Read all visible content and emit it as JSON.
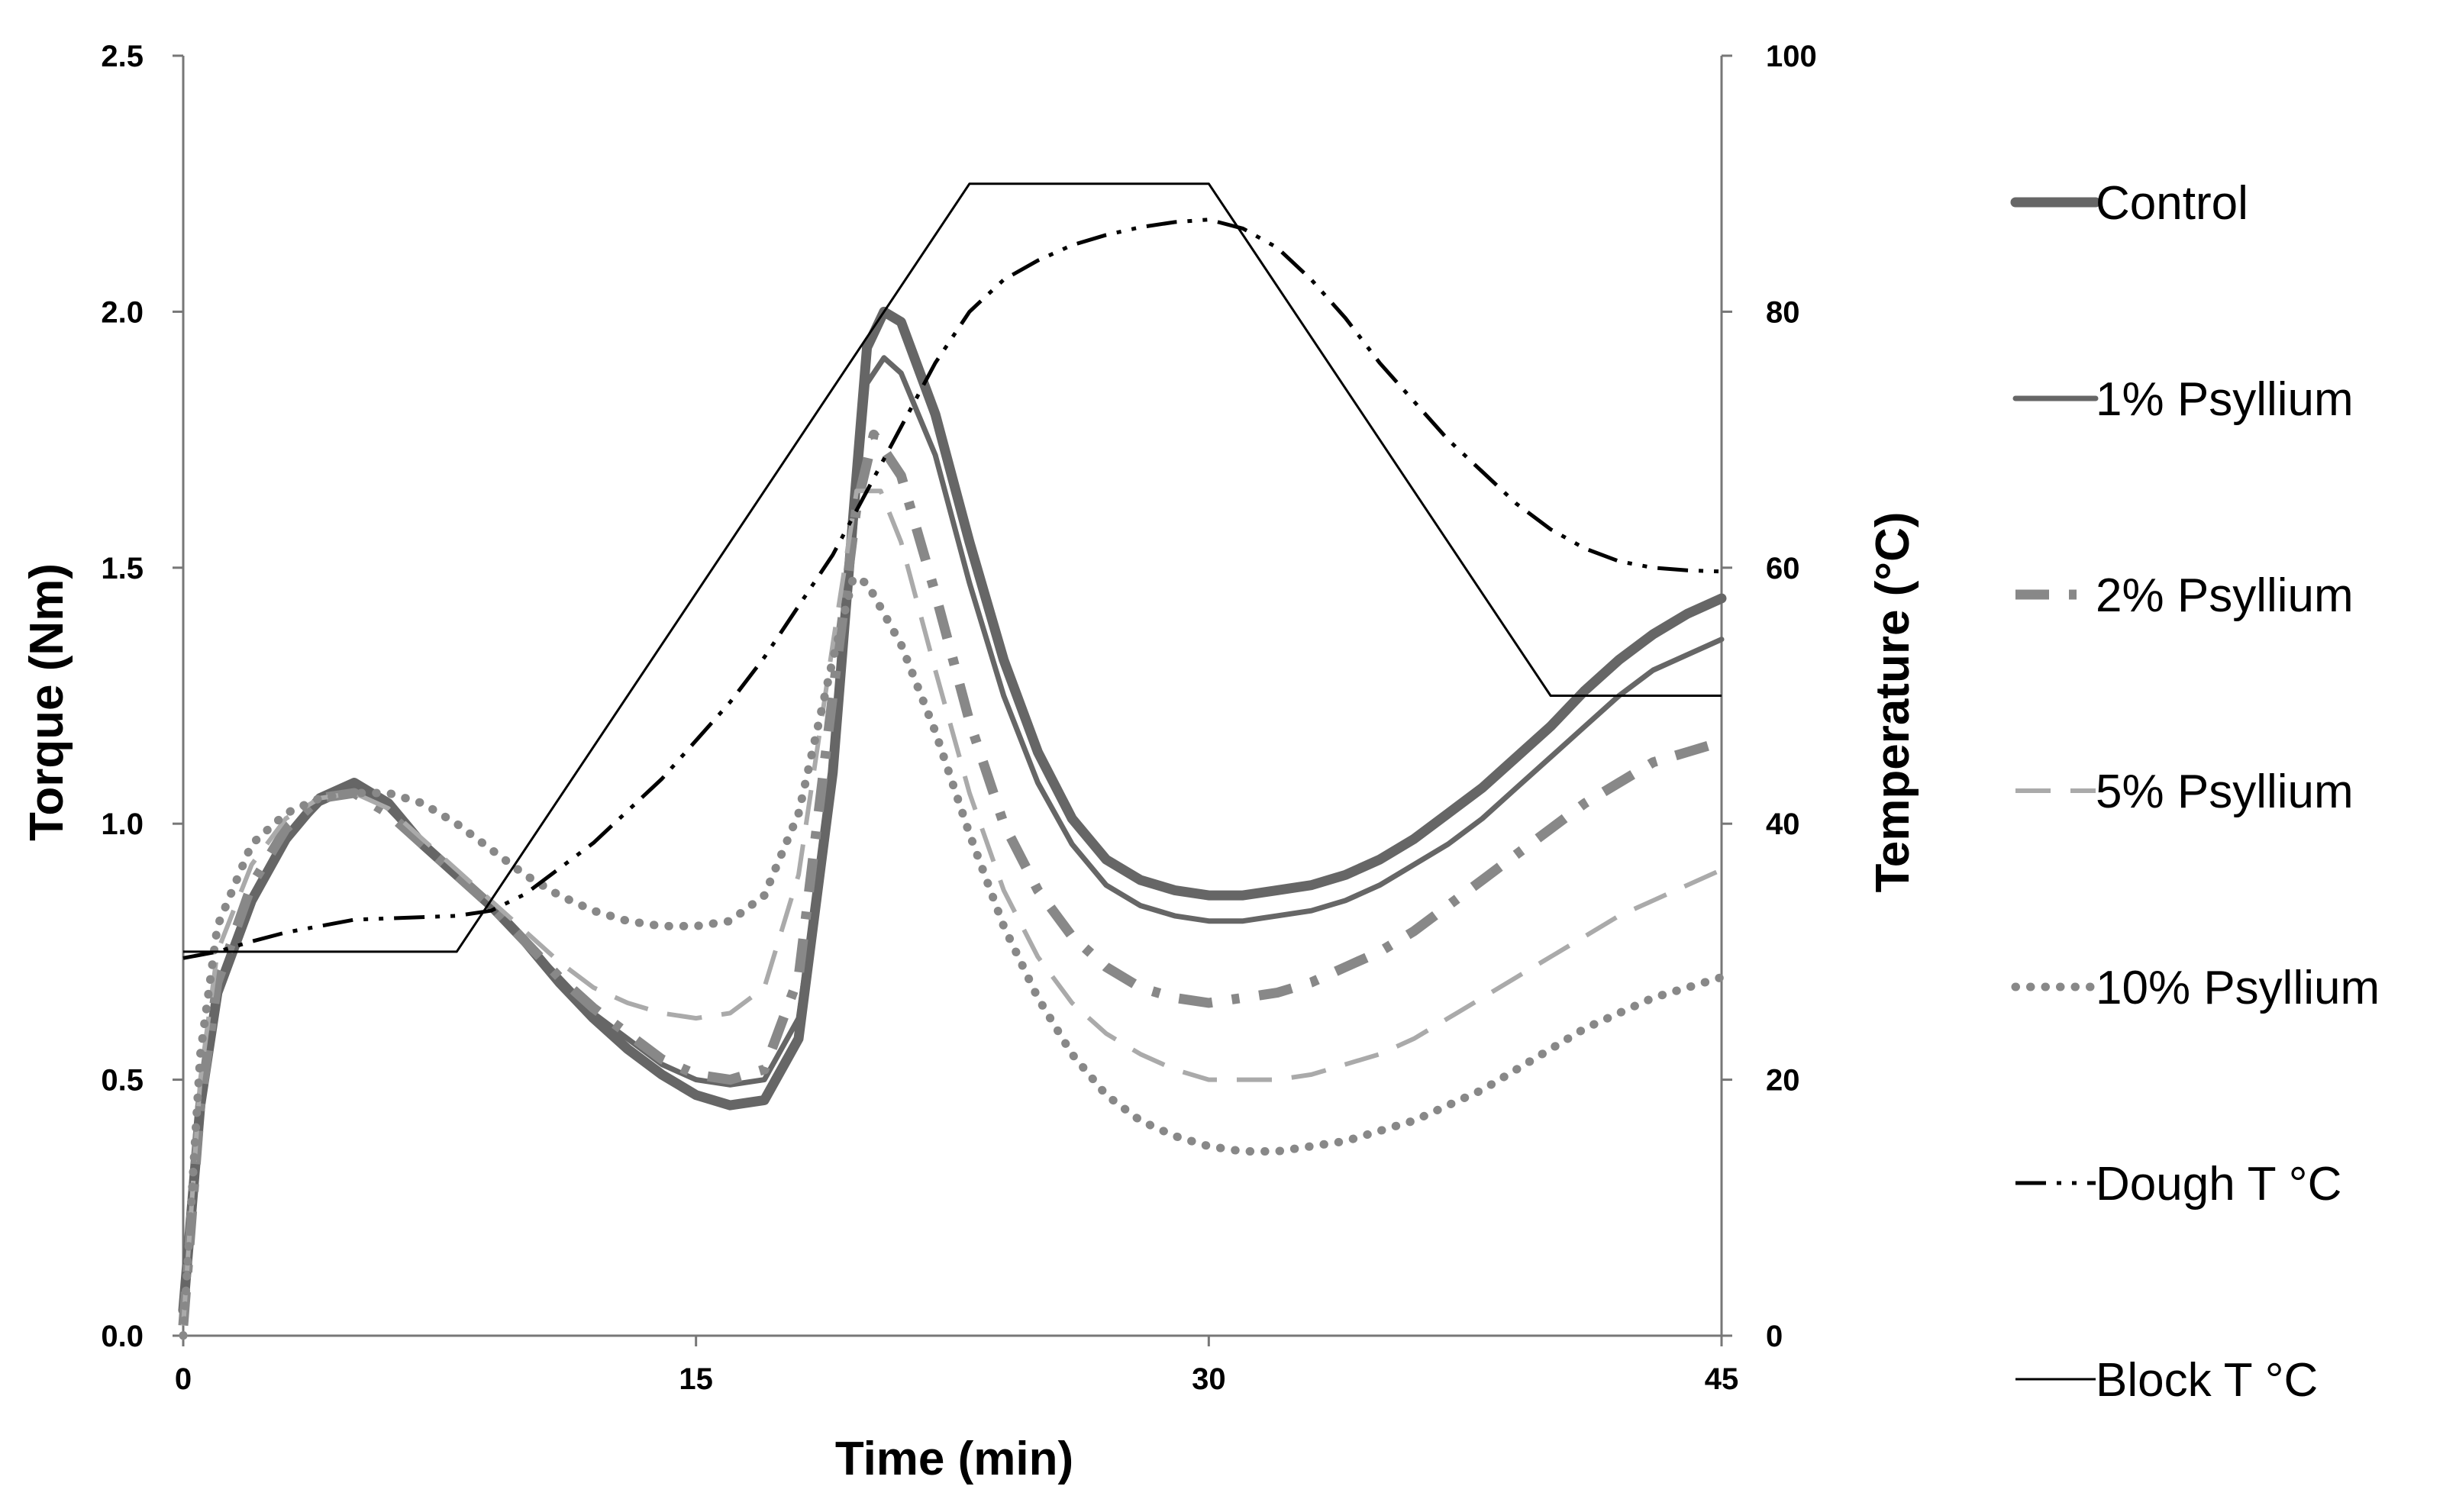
{
  "chart_data": {
    "type": "line",
    "xlabel": "Time (min)",
    "ylabel": "Torque (Nm)",
    "y2label": "Temperature (°C)",
    "xlim": [
      0,
      45
    ],
    "ylim": [
      0,
      2.5
    ],
    "y2lim": [
      0,
      100
    ],
    "xticks": [
      0,
      15,
      30,
      45
    ],
    "yticks": [
      0.0,
      0.5,
      1.0,
      1.5,
      2.0,
      2.5
    ],
    "y2ticks": [
      0,
      20,
      40,
      60,
      80,
      100
    ],
    "xtick_labels": [
      "0",
      "15",
      "30",
      "45"
    ],
    "ytick_labels": [
      "0.0",
      "0.5",
      "1.0",
      "1.5",
      "2.0",
      "2.5"
    ],
    "y2tick_labels": [
      "0",
      "20",
      "40",
      "60",
      "80",
      "100"
    ],
    "grid": false,
    "legend_position": "right",
    "series": [
      {
        "name": "Control",
        "axis": "left",
        "color": "#666666",
        "style": "solid-thick",
        "points": [
          [
            0,
            0.05
          ],
          [
            0.5,
            0.45
          ],
          [
            1,
            0.67
          ],
          [
            2,
            0.85
          ],
          [
            3,
            0.97
          ],
          [
            4,
            1.05
          ],
          [
            5,
            1.08
          ],
          [
            6,
            1.04
          ],
          [
            7,
            0.96
          ],
          [
            8,
            0.9
          ],
          [
            9,
            0.84
          ],
          [
            10,
            0.77
          ],
          [
            11,
            0.69
          ],
          [
            12,
            0.62
          ],
          [
            13,
            0.56
          ],
          [
            14,
            0.51
          ],
          [
            15,
            0.47
          ],
          [
            16,
            0.45
          ],
          [
            17,
            0.46
          ],
          [
            18,
            0.58
          ],
          [
            19,
            1.1
          ],
          [
            19.6,
            1.6
          ],
          [
            20,
            1.93
          ],
          [
            20.5,
            2.0
          ],
          [
            21,
            1.98
          ],
          [
            22,
            1.8
          ],
          [
            23,
            1.55
          ],
          [
            24,
            1.32
          ],
          [
            25,
            1.14
          ],
          [
            26,
            1.01
          ],
          [
            27,
            0.93
          ],
          [
            28,
            0.89
          ],
          [
            29,
            0.87
          ],
          [
            30,
            0.86
          ],
          [
            31,
            0.86
          ],
          [
            32,
            0.87
          ],
          [
            33,
            0.88
          ],
          [
            34,
            0.9
          ],
          [
            35,
            0.93
          ],
          [
            36,
            0.97
          ],
          [
            37,
            1.02
          ],
          [
            38,
            1.07
          ],
          [
            39,
            1.13
          ],
          [
            40,
            1.19
          ],
          [
            41,
            1.26
          ],
          [
            42,
            1.32
          ],
          [
            43,
            1.37
          ],
          [
            44,
            1.41
          ],
          [
            45,
            1.44
          ]
        ]
      },
      {
        "name": "1% Psyllium",
        "axis": "left",
        "color": "#666666",
        "style": "solid",
        "points": [
          [
            0,
            0.05
          ],
          [
            0.5,
            0.45
          ],
          [
            1,
            0.67
          ],
          [
            2,
            0.85
          ],
          [
            3,
            0.97
          ],
          [
            4,
            1.04
          ],
          [
            5,
            1.07
          ],
          [
            6,
            1.03
          ],
          [
            7,
            0.96
          ],
          [
            8,
            0.9
          ],
          [
            9,
            0.84
          ],
          [
            10,
            0.77
          ],
          [
            11,
            0.7
          ],
          [
            12,
            0.63
          ],
          [
            13,
            0.58
          ],
          [
            14,
            0.53
          ],
          [
            15,
            0.5
          ],
          [
            16,
            0.49
          ],
          [
            17,
            0.5
          ],
          [
            18,
            0.62
          ],
          [
            19,
            1.1
          ],
          [
            19.6,
            1.55
          ],
          [
            20,
            1.86
          ],
          [
            20.5,
            1.91
          ],
          [
            21,
            1.88
          ],
          [
            22,
            1.72
          ],
          [
            23,
            1.47
          ],
          [
            24,
            1.25
          ],
          [
            25,
            1.08
          ],
          [
            26,
            0.96
          ],
          [
            27,
            0.88
          ],
          [
            28,
            0.84
          ],
          [
            29,
            0.82
          ],
          [
            30,
            0.81
          ],
          [
            31,
            0.81
          ],
          [
            32,
            0.82
          ],
          [
            33,
            0.83
          ],
          [
            34,
            0.85
          ],
          [
            35,
            0.88
          ],
          [
            36,
            0.92
          ],
          [
            37,
            0.96
          ],
          [
            38,
            1.01
          ],
          [
            39,
            1.07
          ],
          [
            40,
            1.13
          ],
          [
            41,
            1.19
          ],
          [
            42,
            1.25
          ],
          [
            43,
            1.3
          ],
          [
            44,
            1.33
          ],
          [
            45,
            1.36
          ]
        ]
      },
      {
        "name": "2% Psyllium",
        "axis": "left",
        "color": "#888888",
        "style": "dash-dot",
        "points": [
          [
            0,
            0.02
          ],
          [
            0.5,
            0.45
          ],
          [
            1,
            0.69
          ],
          [
            2,
            0.88
          ],
          [
            3,
            0.99
          ],
          [
            4,
            1.05
          ],
          [
            5,
            1.06
          ],
          [
            6,
            1.02
          ],
          [
            7,
            0.96
          ],
          [
            8,
            0.9
          ],
          [
            9,
            0.84
          ],
          [
            10,
            0.77
          ],
          [
            11,
            0.7
          ],
          [
            12,
            0.64
          ],
          [
            13,
            0.59
          ],
          [
            14,
            0.54
          ],
          [
            15,
            0.51
          ],
          [
            16,
            0.5
          ],
          [
            17,
            0.52
          ],
          [
            18,
            0.7
          ],
          [
            19,
            1.25
          ],
          [
            19.7,
            1.62
          ],
          [
            20.2,
            1.76
          ],
          [
            21,
            1.68
          ],
          [
            22,
            1.45
          ],
          [
            23,
            1.2
          ],
          [
            24,
            1.0
          ],
          [
            25,
            0.87
          ],
          [
            26,
            0.78
          ],
          [
            27,
            0.72
          ],
          [
            28,
            0.68
          ],
          [
            29,
            0.66
          ],
          [
            30,
            0.65
          ],
          [
            31,
            0.66
          ],
          [
            32,
            0.67
          ],
          [
            33,
            0.69
          ],
          [
            34,
            0.72
          ],
          [
            35,
            0.75
          ],
          [
            36,
            0.79
          ],
          [
            37,
            0.84
          ],
          [
            38,
            0.89
          ],
          [
            39,
            0.94
          ],
          [
            40,
            0.99
          ],
          [
            41,
            1.04
          ],
          [
            42,
            1.08
          ],
          [
            43,
            1.12
          ],
          [
            44,
            1.14
          ],
          [
            45,
            1.16
          ]
        ]
      },
      {
        "name": "5% Psyllium",
        "axis": "left",
        "color": "#aaaaaa",
        "style": "dashed",
        "points": [
          [
            0,
            0.02
          ],
          [
            0.5,
            0.5
          ],
          [
            1,
            0.75
          ],
          [
            2,
            0.92
          ],
          [
            3,
            1.01
          ],
          [
            4,
            1.05
          ],
          [
            5,
            1.06
          ],
          [
            6,
            1.03
          ],
          [
            7,
            0.97
          ],
          [
            8,
            0.91
          ],
          [
            9,
            0.85
          ],
          [
            10,
            0.79
          ],
          [
            11,
            0.73
          ],
          [
            12,
            0.68
          ],
          [
            13,
            0.65
          ],
          [
            14,
            0.63
          ],
          [
            15,
            0.62
          ],
          [
            16,
            0.63
          ],
          [
            17,
            0.68
          ],
          [
            18,
            0.9
          ],
          [
            19,
            1.35
          ],
          [
            19.7,
            1.65
          ],
          [
            20.4,
            1.65
          ],
          [
            21,
            1.55
          ],
          [
            22,
            1.3
          ],
          [
            23,
            1.06
          ],
          [
            24,
            0.87
          ],
          [
            25,
            0.74
          ],
          [
            26,
            0.65
          ],
          [
            27,
            0.59
          ],
          [
            28,
            0.55
          ],
          [
            29,
            0.52
          ],
          [
            30,
            0.5
          ],
          [
            31,
            0.5
          ],
          [
            32,
            0.5
          ],
          [
            33,
            0.51
          ],
          [
            34,
            0.53
          ],
          [
            35,
            0.55
          ],
          [
            36,
            0.58
          ],
          [
            37,
            0.62
          ],
          [
            38,
            0.66
          ],
          [
            39,
            0.7
          ],
          [
            40,
            0.74
          ],
          [
            41,
            0.78
          ],
          [
            42,
            0.82
          ],
          [
            43,
            0.85
          ],
          [
            44,
            0.88
          ],
          [
            45,
            0.91
          ]
        ]
      },
      {
        "name": "10% Psyllium",
        "axis": "left",
        "color": "#888888",
        "style": "dotted",
        "points": [
          [
            0,
            0.0
          ],
          [
            0.5,
            0.55
          ],
          [
            1,
            0.8
          ],
          [
            2,
            0.96
          ],
          [
            3,
            1.02
          ],
          [
            4,
            1.05
          ],
          [
            5,
            1.06
          ],
          [
            6,
            1.06
          ],
          [
            7,
            1.04
          ],
          [
            8,
            1.0
          ],
          [
            9,
            0.95
          ],
          [
            10,
            0.9
          ],
          [
            11,
            0.86
          ],
          [
            12,
            0.83
          ],
          [
            13,
            0.81
          ],
          [
            14,
            0.8
          ],
          [
            15,
            0.8
          ],
          [
            16,
            0.81
          ],
          [
            17,
            0.86
          ],
          [
            18,
            1.02
          ],
          [
            19,
            1.32
          ],
          [
            19.6,
            1.48
          ],
          [
            20,
            1.47
          ],
          [
            21,
            1.35
          ],
          [
            22,
            1.18
          ],
          [
            23,
            0.98
          ],
          [
            24,
            0.8
          ],
          [
            25,
            0.66
          ],
          [
            26,
            0.55
          ],
          [
            27,
            0.47
          ],
          [
            28,
            0.42
          ],
          [
            29,
            0.39
          ],
          [
            30,
            0.37
          ],
          [
            31,
            0.36
          ],
          [
            32,
            0.36
          ],
          [
            33,
            0.37
          ],
          [
            34,
            0.38
          ],
          [
            35,
            0.4
          ],
          [
            36,
            0.42
          ],
          [
            37,
            0.45
          ],
          [
            38,
            0.48
          ],
          [
            39,
            0.52
          ],
          [
            40,
            0.56
          ],
          [
            41,
            0.6
          ],
          [
            42,
            0.63
          ],
          [
            43,
            0.66
          ],
          [
            44,
            0.68
          ],
          [
            45,
            0.7
          ]
        ]
      },
      {
        "name": "Dough T °C",
        "axis": "right",
        "color": "#000000",
        "style": "dash-dot-dot",
        "points": [
          [
            0,
            29.5
          ],
          [
            1,
            30
          ],
          [
            2,
            30.8
          ],
          [
            3,
            31.5
          ],
          [
            4,
            32
          ],
          [
            5,
            32.5
          ],
          [
            6,
            32.6
          ],
          [
            7,
            32.7
          ],
          [
            8,
            32.8
          ],
          [
            9,
            33.2
          ],
          [
            10,
            34.5
          ],
          [
            11,
            36.5
          ],
          [
            12,
            38.5
          ],
          [
            13,
            41
          ],
          [
            14,
            43.5
          ],
          [
            15,
            46.5
          ],
          [
            16,
            49.5
          ],
          [
            17,
            53
          ],
          [
            18,
            57
          ],
          [
            19,
            61
          ],
          [
            20,
            66
          ],
          [
            21,
            71
          ],
          [
            22,
            76
          ],
          [
            23,
            80
          ],
          [
            24,
            82.5
          ],
          [
            25,
            84
          ],
          [
            26,
            85.2
          ],
          [
            27,
            86
          ],
          [
            28,
            86.6
          ],
          [
            29,
            87
          ],
          [
            30,
            87.2
          ],
          [
            31,
            86.5
          ],
          [
            32,
            85
          ],
          [
            33,
            82.5
          ],
          [
            34,
            79.5
          ],
          [
            35,
            76
          ],
          [
            36,
            73
          ],
          [
            37,
            70
          ],
          [
            38,
            67.5
          ],
          [
            39,
            65
          ],
          [
            40,
            63
          ],
          [
            41,
            61.5
          ],
          [
            42,
            60.5
          ],
          [
            43,
            60
          ],
          [
            44,
            59.8
          ],
          [
            45,
            59.7
          ]
        ]
      },
      {
        "name": "Block T °C",
        "axis": "right",
        "color": "#000000",
        "style": "solid-thin",
        "points": [
          [
            0,
            30
          ],
          [
            8,
            30
          ],
          [
            23,
            90
          ],
          [
            30,
            90
          ],
          [
            40,
            50
          ],
          [
            45,
            50
          ]
        ]
      }
    ]
  },
  "legend": {
    "items": [
      {
        "label": "Control",
        "style": "solid-thick",
        "color": "#666666"
      },
      {
        "label": "1% Psyllium",
        "style": "solid",
        "color": "#666666"
      },
      {
        "label": "2% Psyllium",
        "style": "dash-dot",
        "color": "#888888"
      },
      {
        "label": "5% Psyllium",
        "style": "dashed",
        "color": "#aaaaaa"
      },
      {
        "label": "10% Psyllium",
        "style": "dotted",
        "color": "#888888"
      },
      {
        "label": "Dough T °C",
        "style": "dash-dot-dot",
        "color": "#000000"
      },
      {
        "label": "Block T °C",
        "style": "solid-thin",
        "color": "#000000"
      }
    ]
  }
}
